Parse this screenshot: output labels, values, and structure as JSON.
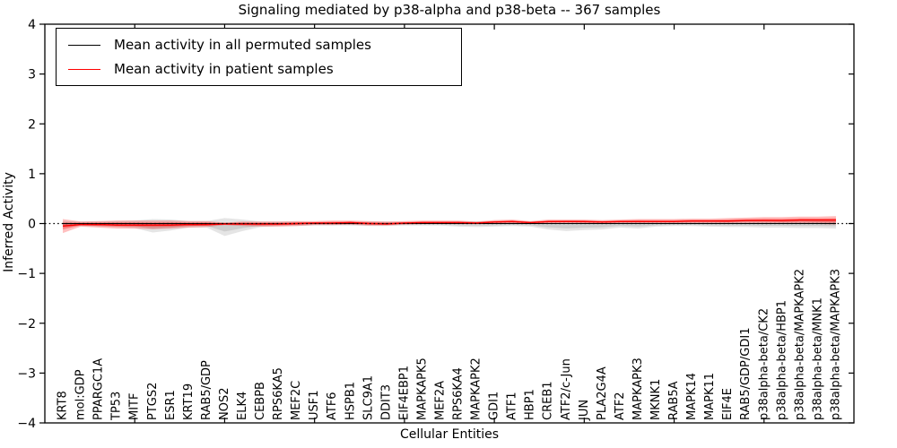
{
  "figure": {
    "background": "#ffffff",
    "axes_color": "#000000"
  },
  "legend": {
    "entries": [
      {
        "label": "Mean activity in all permuted samples",
        "color": "#000000"
      },
      {
        "label": "Mean activity in patient samples",
        "color": "#ff0000"
      }
    ]
  },
  "chart_data": {
    "type": "line",
    "title": "Signaling mediated by p38-alpha and p38-beta -- 367 samples",
    "xlabel": "Cellular Entities",
    "ylabel": "Inferred Activity",
    "ylim": [
      -4,
      4
    ],
    "yticks": [
      -4,
      -3,
      -2,
      -1,
      0,
      1,
      2,
      3,
      4
    ],
    "xlim": [
      0,
      45
    ],
    "xticks": [
      5,
      10,
      15,
      20,
      25,
      30,
      35,
      40
    ],
    "grid": false,
    "legend_position": "upper left",
    "zero_reference_line": {
      "style": "dotted",
      "color": "#000000",
      "y": 0
    },
    "categories": [
      "KRT8",
      "mol:GDP",
      "PPARGC1A",
      "TP53",
      "MITF",
      "PTGS2",
      "ESR1",
      "KRT19",
      "RAB5/GDP",
      "NOS2",
      "ELK4",
      "CEBPB",
      "RPS6KA5",
      "MEF2C",
      "USF1",
      "ATF6",
      "HSPB1",
      "SLC9A1",
      "DDIT3",
      "EIF4EBP1",
      "MAPKAPK5",
      "MEF2A",
      "RPS6KA4",
      "MAPKAPK2",
      "GDI1",
      "ATF1",
      "HBP1",
      "CREB1",
      "ATF2/c-Jun",
      "JUN",
      "PLA2G4A",
      "ATF2",
      "MAPKAPK3",
      "MKNK1",
      "RAB5A",
      "MAPK14",
      "MAPK11",
      "EIF4E",
      "RAB5/GDP/GDI1",
      "p38alpha-beta/CK2",
      "p38alpha-beta/HBP1",
      "p38alpha-beta/MAPKAPK2",
      "p38alpha-beta/MNK1",
      "p38alpha-beta/MAPKAPK3"
    ],
    "series": [
      {
        "name": "Mean activity in all permuted samples",
        "color": "#000000",
        "values": [
          0,
          0,
          0,
          0,
          0,
          0,
          0,
          0,
          0,
          0,
          0,
          0,
          0,
          0,
          0,
          0,
          0,
          0,
          0,
          0,
          0,
          0,
          0,
          0,
          0,
          0,
          0,
          0,
          0,
          0,
          0,
          0,
          0,
          0,
          0,
          0,
          0,
          0,
          0,
          0,
          0,
          0,
          0,
          0
        ]
      },
      {
        "name": "Mean activity in patient samples",
        "color": "#ff0000",
        "values": [
          -0.05,
          -0.02,
          -0.02,
          -0.03,
          -0.03,
          -0.03,
          -0.03,
          -0.02,
          -0.02,
          -0.01,
          -0.01,
          -0.01,
          -0.01,
          0,
          0.01,
          0.01,
          0.02,
          0,
          -0.01,
          0.01,
          0.02,
          0.02,
          0.02,
          0.01,
          0.03,
          0.04,
          0.02,
          0.04,
          0.04,
          0.04,
          0.03,
          0.04,
          0.04,
          0.04,
          0.04,
          0.05,
          0.05,
          0.05,
          0.06,
          0.06,
          0.06,
          0.07,
          0.07,
          0.07
        ]
      }
    ],
    "bands": [
      {
        "name": "permuted-activity-range",
        "color": "#999999",
        "low": [
          -0.08,
          -0.05,
          -0.06,
          -0.07,
          -0.09,
          -0.18,
          -0.14,
          -0.08,
          -0.08,
          -0.25,
          -0.15,
          -0.07,
          -0.05,
          -0.05,
          -0.04,
          -0.04,
          -0.04,
          -0.05,
          -0.05,
          -0.04,
          -0.04,
          -0.04,
          -0.06,
          -0.07,
          -0.06,
          -0.05,
          -0.06,
          -0.12,
          -0.15,
          -0.13,
          -0.12,
          -0.08,
          -0.1,
          -0.06,
          -0.05,
          -0.05,
          -0.06,
          -0.07,
          -0.07,
          -0.08,
          -0.08,
          -0.09,
          -0.09,
          -0.1
        ],
        "high": [
          0.05,
          0.04,
          0.04,
          0.05,
          0.06,
          0.09,
          0.08,
          0.05,
          0.05,
          0.11,
          0.08,
          0.04,
          0.04,
          0.04,
          0.03,
          0.03,
          0.03,
          0.04,
          0.04,
          0.03,
          0.03,
          0.03,
          0.04,
          0.05,
          0.04,
          0.04,
          0.04,
          0.05,
          0.06,
          0.06,
          0.05,
          0.05,
          0.06,
          0.04,
          0.04,
          0.04,
          0.04,
          0.05,
          0.05,
          0.06,
          0.06,
          0.07,
          0.07,
          0.08
        ]
      },
      {
        "name": "patient-activity-range",
        "color": "#ff0000",
        "low": [
          -0.19,
          -0.06,
          -0.08,
          -0.1,
          -0.1,
          -0.11,
          -0.1,
          -0.08,
          -0.07,
          -0.03,
          -0.05,
          -0.06,
          -0.06,
          -0.05,
          -0.03,
          -0.03,
          -0.02,
          -0.04,
          -0.04,
          -0.02,
          -0.01,
          -0.01,
          -0.01,
          -0.01,
          0,
          0.01,
          -0.01,
          0,
          0.01,
          0,
          0,
          0.01,
          0.01,
          0.01,
          0.01,
          0.01,
          0.01,
          0,
          0.01,
          0.01,
          0,
          0,
          -0.01,
          -0.02
        ],
        "high": [
          0.09,
          0.04,
          0.05,
          0.06,
          0.06,
          0.06,
          0.06,
          0.05,
          0.05,
          0.02,
          0.04,
          0.04,
          0.04,
          0.05,
          0.05,
          0.06,
          0.06,
          0.05,
          0.04,
          0.05,
          0.06,
          0.06,
          0.06,
          0.04,
          0.07,
          0.08,
          0.05,
          0.08,
          0.08,
          0.08,
          0.07,
          0.08,
          0.09,
          0.09,
          0.09,
          0.1,
          0.1,
          0.11,
          0.12,
          0.13,
          0.13,
          0.14,
          0.14,
          0.15
        ]
      }
    ]
  }
}
